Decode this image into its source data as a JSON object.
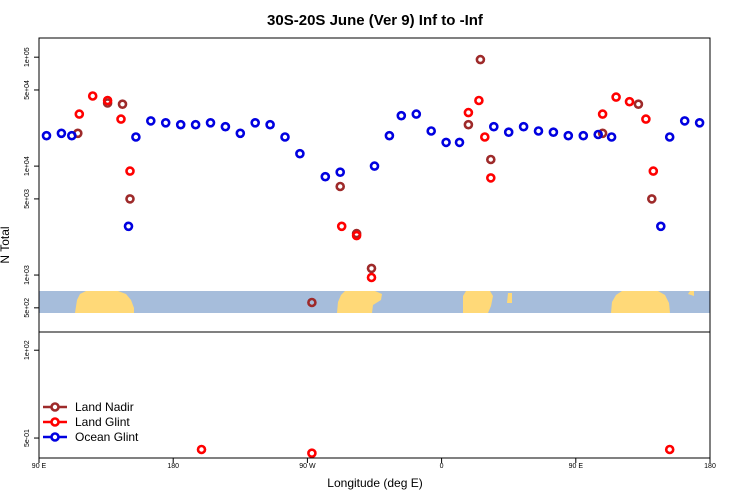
{
  "chart_data": {
    "type": "scatter",
    "title": "30S-20S June (Ver 9)   Inf to -Inf",
    "xlabel": "Longitude (deg E)",
    "ylabel": "N Total",
    "xlim": [
      90,
      540
    ],
    "x_ticks": [
      {
        "value": 90,
        "label": "90 E"
      },
      {
        "value": 180,
        "label": "180"
      },
      {
        "value": 270,
        "label": "90 W"
      },
      {
        "value": 360,
        "label": "0"
      },
      {
        "value": 450,
        "label": "90 E"
      },
      {
        "value": 540,
        "label": "180"
      }
    ],
    "y_scale": "log",
    "upper_panel": {
      "ylim": [
        300,
        150000
      ],
      "y_ticks": [
        {
          "value": 500,
          "label": "5e+02"
        },
        {
          "value": 1000,
          "label": "1e+03"
        },
        {
          "value": 5000,
          "label": "5e+03"
        },
        {
          "value": 10000,
          "label": "1e+04"
        },
        {
          "value": 50000,
          "label": "5e+04"
        },
        {
          "value": 100000,
          "label": "1e+05"
        }
      ]
    },
    "lower_panel": {
      "ylim": [
        0.15,
        300
      ],
      "y_ticks": [
        {
          "value": 0.5,
          "label": "5e-01"
        },
        {
          "value": 100,
          "label": "1e+02"
        }
      ]
    },
    "land_mask_colors": {
      "ocean": "#A6BDDB",
      "land": "#FFD978"
    },
    "legend": {
      "position": "bottom-left",
      "entries": [
        {
          "name": "Land Nadir",
          "color": "#9E2A2A"
        },
        {
          "name": "Land Glint",
          "color": "#FF0000"
        },
        {
          "name": "Ocean Glint",
          "color": "#0000E0"
        }
      ]
    },
    "series": [
      {
        "name": "Land Nadir",
        "color": "#9E2A2A",
        "points": [
          [
            116,
            20000
          ],
          [
            136,
            38000
          ],
          [
            146,
            37000
          ],
          [
            151,
            5000
          ],
          [
            273,
            560
          ],
          [
            292,
            6500
          ],
          [
            303,
            2400
          ],
          [
            313,
            1150
          ],
          [
            378,
            24000
          ],
          [
            386,
            95000
          ],
          [
            393,
            11500
          ],
          [
            468,
            20000
          ],
          [
            492,
            37000
          ],
          [
            501,
            5000
          ]
        ]
      },
      {
        "name": "Land Glint",
        "color": "#FF0000",
        "points": [
          [
            117,
            30000
          ],
          [
            126,
            44000
          ],
          [
            136,
            40000
          ],
          [
            145,
            27000
          ],
          [
            151,
            9000
          ],
          [
            273,
            0.2
          ],
          [
            293,
            2800
          ],
          [
            303,
            2300
          ],
          [
            313,
            950
          ],
          [
            378,
            31000
          ],
          [
            385,
            40000
          ],
          [
            389,
            18500
          ],
          [
            393,
            7800
          ],
          [
            468,
            30000
          ],
          [
            477,
            43000
          ],
          [
            486,
            39000
          ],
          [
            497,
            27000
          ],
          [
            502,
            9000
          ],
          [
            199,
            0.25
          ],
          [
            513,
            0.25
          ]
        ]
      },
      {
        "name": "Ocean Glint",
        "color": "#0000E0",
        "points": [
          [
            95,
            19000
          ],
          [
            105,
            20000
          ],
          [
            112,
            19000
          ],
          [
            150,
            2800
          ],
          [
            155,
            18500
          ],
          [
            165,
            26000
          ],
          [
            175,
            25000
          ],
          [
            185,
            24000
          ],
          [
            195,
            24000
          ],
          [
            205,
            25000
          ],
          [
            215,
            23000
          ],
          [
            225,
            20000
          ],
          [
            235,
            25000
          ],
          [
            245,
            24000
          ],
          [
            255,
            18500
          ],
          [
            265,
            13000
          ],
          [
            282,
            8000
          ],
          [
            292,
            8800
          ],
          [
            315,
            10000
          ],
          [
            325,
            19000
          ],
          [
            333,
            29000
          ],
          [
            343,
            30000
          ],
          [
            353,
            21000
          ],
          [
            363,
            16500
          ],
          [
            372,
            16500
          ],
          [
            395,
            23000
          ],
          [
            405,
            20500
          ],
          [
            415,
            23000
          ],
          [
            425,
            21000
          ],
          [
            435,
            20500
          ],
          [
            445,
            19000
          ],
          [
            455,
            19000
          ],
          [
            465,
            19500
          ],
          [
            474,
            18500
          ],
          [
            507,
            2800
          ],
          [
            513,
            18500
          ],
          [
            523,
            26000
          ],
          [
            533,
            25000
          ]
        ]
      }
    ]
  }
}
